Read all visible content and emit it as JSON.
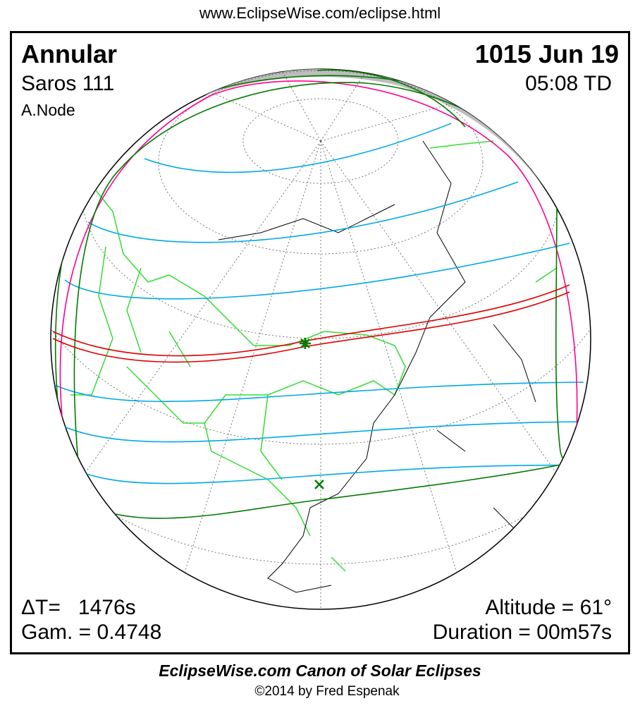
{
  "header": {
    "url": "www.EclipseWise.com/eclipse.html"
  },
  "eclipse": {
    "type": "Annular",
    "saros": "Saros 111",
    "node": "A.Node",
    "date": "1015 Jun 19",
    "time": "05:08 TD",
    "delta_t": "ΔT=   1476s",
    "gamma": "Gam. = 0.4748",
    "altitude": "Altitude = 61°",
    "duration": "Duration = 00m57s"
  },
  "footer": {
    "canon": "EclipseWise.com Canon of Solar Eclipses",
    "copyright": "©2014 by Fred Espenak"
  },
  "colors": {
    "central_path": "#e00000",
    "penumbral_limits": "#007a00",
    "rise_set_curves": "#ff0090",
    "time_lines": "#00a8e8",
    "borders": "#33dd33",
    "night_shade": "#bdbdbd"
  },
  "markers": {
    "greatest_eclipse": "asterisk-marker",
    "greatest_duration": "x-marker"
  }
}
